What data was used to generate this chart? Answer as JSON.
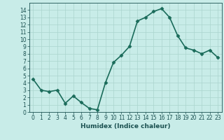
{
  "x": [
    0,
    1,
    2,
    3,
    4,
    5,
    6,
    7,
    8,
    9,
    10,
    11,
    12,
    13,
    14,
    15,
    16,
    17,
    18,
    19,
    20,
    21,
    22,
    23
  ],
  "y": [
    4.5,
    3.0,
    2.8,
    3.0,
    1.2,
    2.2,
    1.3,
    0.5,
    0.3,
    4.0,
    6.8,
    7.8,
    9.0,
    12.5,
    13.0,
    13.8,
    14.2,
    13.0,
    10.5,
    8.8,
    8.5,
    8.0,
    8.5,
    7.5
  ],
  "line_color": "#1a6b5a",
  "marker": "D",
  "markersize": 2.5,
  "bg_color": "#c8ece8",
  "grid_color": "#aad4ce",
  "xlabel": "Humidex (Indice chaleur)",
  "ylim": [
    0,
    15
  ],
  "xlim": [
    -0.5,
    23.5
  ],
  "yticks": [
    0,
    1,
    2,
    3,
    4,
    5,
    6,
    7,
    8,
    9,
    10,
    11,
    12,
    13,
    14
  ],
  "xticks": [
    0,
    1,
    2,
    3,
    4,
    5,
    6,
    7,
    8,
    9,
    10,
    11,
    12,
    13,
    14,
    15,
    16,
    17,
    18,
    19,
    20,
    21,
    22,
    23
  ],
  "font_color": "#1a5050",
  "linewidth": 1.2,
  "tick_fontsize": 5.5,
  "xlabel_fontsize": 6.5
}
